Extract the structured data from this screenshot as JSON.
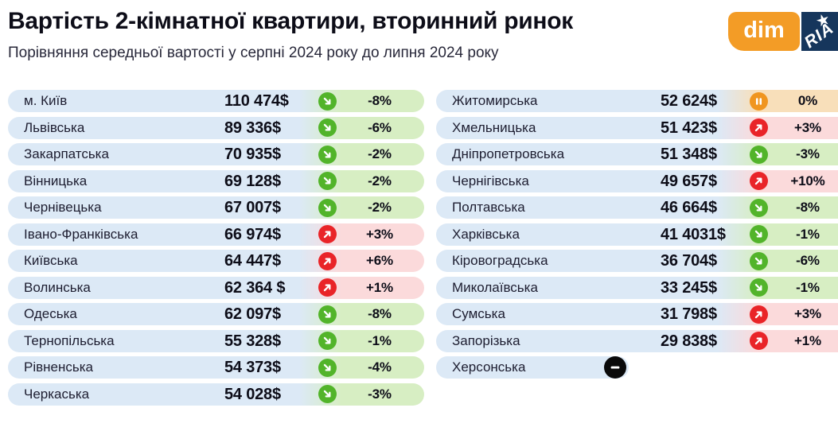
{
  "title": "Вартість 2-кімнатної квартири, вторинний ринок",
  "subtitle": "Порівняння середньої вартості у серпні 2024 року до липня 2024 року",
  "logos": {
    "dim": "dim",
    "ria": "RIA",
    "ria_star": "★"
  },
  "colors": {
    "title-color": "#0d0d18",
    "subtitle-color": "#28283a",
    "name-color": "#1d1d30",
    "number-color": "#0d0d18",
    "row-blue": "#dce9f6",
    "bg-green": "#d7eec3",
    "bg-red": "#fbdadb",
    "bg-orange": "#f8dfba",
    "circle-green": "#52b42a",
    "circle-red": "#e92428",
    "circle-orange": "#f0951f",
    "circle-black": "#0a0a0a",
    "dim-orange": "#f39c26",
    "ria-navy": "#16365c"
  },
  "chart_data": {
    "type": "table",
    "title": "Вартість 2-кімнатної квартири, вторинний ринок",
    "subtitle": "Порівняння середньої вартості у серпні 2024 року до липня 2024 року",
    "columns": [
      "region",
      "price",
      "trend",
      "change"
    ],
    "trend_legend": {
      "down": "price decreased (green, arrow down-right)",
      "up": "price increased (red, arrow up-right)",
      "flat": "no change (orange, pause)",
      "none": "no data (black, minus)"
    },
    "left": [
      {
        "region": "м. Київ",
        "price": "110 474$",
        "trend": "down",
        "change": "-8%"
      },
      {
        "region": "Львівська",
        "price": "89 336$",
        "trend": "down",
        "change": "-6%"
      },
      {
        "region": "Закарпатська",
        "price": "70 935$",
        "trend": "down",
        "change": "-2%"
      },
      {
        "region": "Вінницька",
        "price": "69 128$",
        "trend": "down",
        "change": "-2%"
      },
      {
        "region": "Чернівецька",
        "price": "67 007$",
        "trend": "down",
        "change": "-2%"
      },
      {
        "region": "Івано-Франківська",
        "price": "66 974$",
        "trend": "up",
        "change": "+3%"
      },
      {
        "region": "Київська",
        "price": "64 447$",
        "trend": "up",
        "change": "+6%"
      },
      {
        "region": "Волинська",
        "price": "62 364 $",
        "trend": "up",
        "change": "+1%"
      },
      {
        "region": "Одеська",
        "price": "62 097$",
        "trend": "down",
        "change": "-8%"
      },
      {
        "region": "Тернопільська",
        "price": "55 328$",
        "trend": "down",
        "change": "-1%"
      },
      {
        "region": "Рівненська",
        "price": "54 373$",
        "trend": "down",
        "change": "-4%"
      },
      {
        "region": "Черкаська",
        "price": "54 028$",
        "trend": "down",
        "change": "-3%"
      }
    ],
    "right": [
      {
        "region": "Житомирська",
        "price": "52 624$",
        "trend": "flat",
        "change": "0%"
      },
      {
        "region": "Хмельницька",
        "price": "51 423$",
        "trend": "up",
        "change": "+3%"
      },
      {
        "region": "Дніпропетровська",
        "price": "51 348$",
        "trend": "down",
        "change": "-3%"
      },
      {
        "region": "Чернігівська",
        "price": "49 657$",
        "trend": "up",
        "change": "+10%"
      },
      {
        "region": "Полтавська",
        "price": "46 664$",
        "trend": "down",
        "change": "-8%"
      },
      {
        "region": "Харківська",
        "price": "41 4031$",
        "trend": "down",
        "change": "-1%"
      },
      {
        "region": "Кіровоградська",
        "price": "36 704$",
        "trend": "down",
        "change": "-6%"
      },
      {
        "region": "Миколаївська",
        "price": "33 245$",
        "trend": "down",
        "change": "-1%"
      },
      {
        "region": "Сумська",
        "price": "31 798$",
        "trend": "up",
        "change": "+3%"
      },
      {
        "region": "Запорізька",
        "price": "29 838$",
        "trend": "up",
        "change": "+1%"
      },
      {
        "region": "Херсонська",
        "price": "",
        "trend": "none",
        "change": ""
      }
    ]
  }
}
